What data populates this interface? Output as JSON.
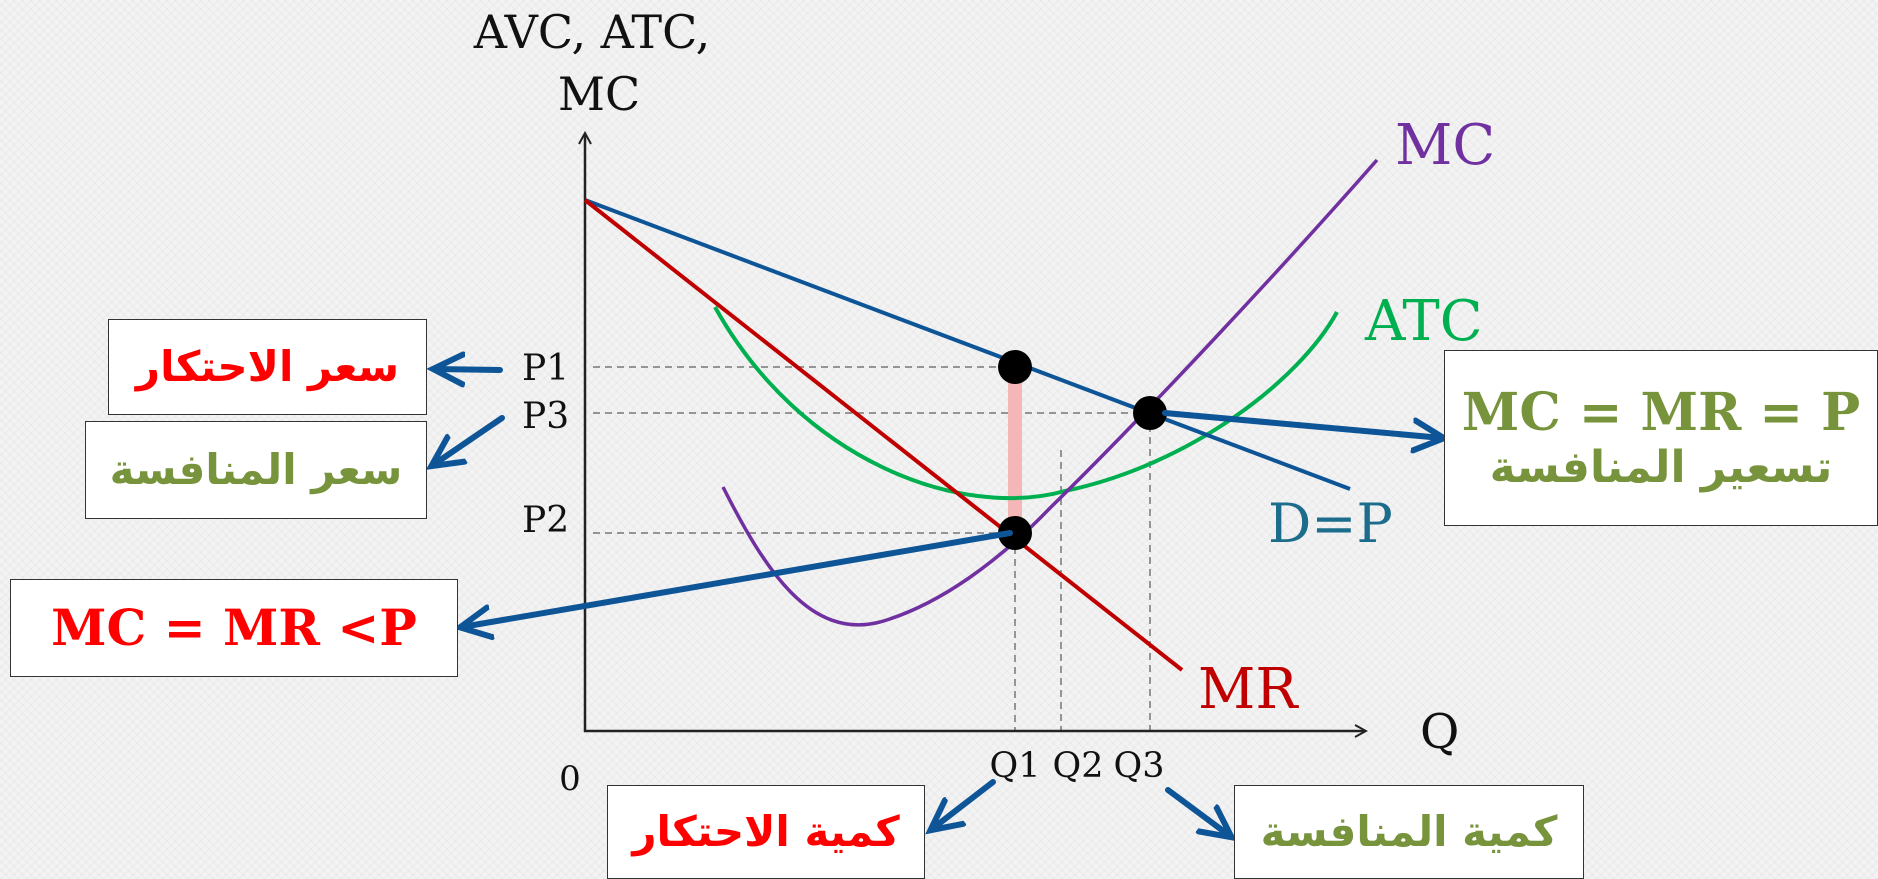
{
  "colors": {
    "demand": "#0e5597",
    "mr": "#c00000",
    "mc": "#7030a0",
    "atc": "#00b050",
    "arrow": "#0e5597",
    "monopoly_text": "#ff0000",
    "competition_text": "#77933c",
    "highlight": "#f4b6b6",
    "axis": "#222222"
  },
  "axes": {
    "y_label_line1": "AVC, ATC,",
    "y_label_line2": "MC",
    "x_label": "Q",
    "origin": "0"
  },
  "price_ticks": {
    "p1": "P1",
    "p3": "P3",
    "p2": "P2"
  },
  "quantity_ticks": {
    "q1": "Q1",
    "q2": "Q2",
    "q3": "Q3"
  },
  "curve_labels": {
    "mc": "MC",
    "atc": "ATC",
    "demand": "D=P",
    "mr": "MR"
  },
  "boxes": {
    "monopoly_price": "سعر الاحتكار",
    "competition_price": "سعر المنافسة",
    "monopoly_rule": "MC = MR <P",
    "competition_rule": "MC = MR = P",
    "competition_pricing": "تسعير المنافسة",
    "monopoly_quantity": "كمية الاحتكار",
    "competition_quantity": "كمية المنافسة"
  }
}
